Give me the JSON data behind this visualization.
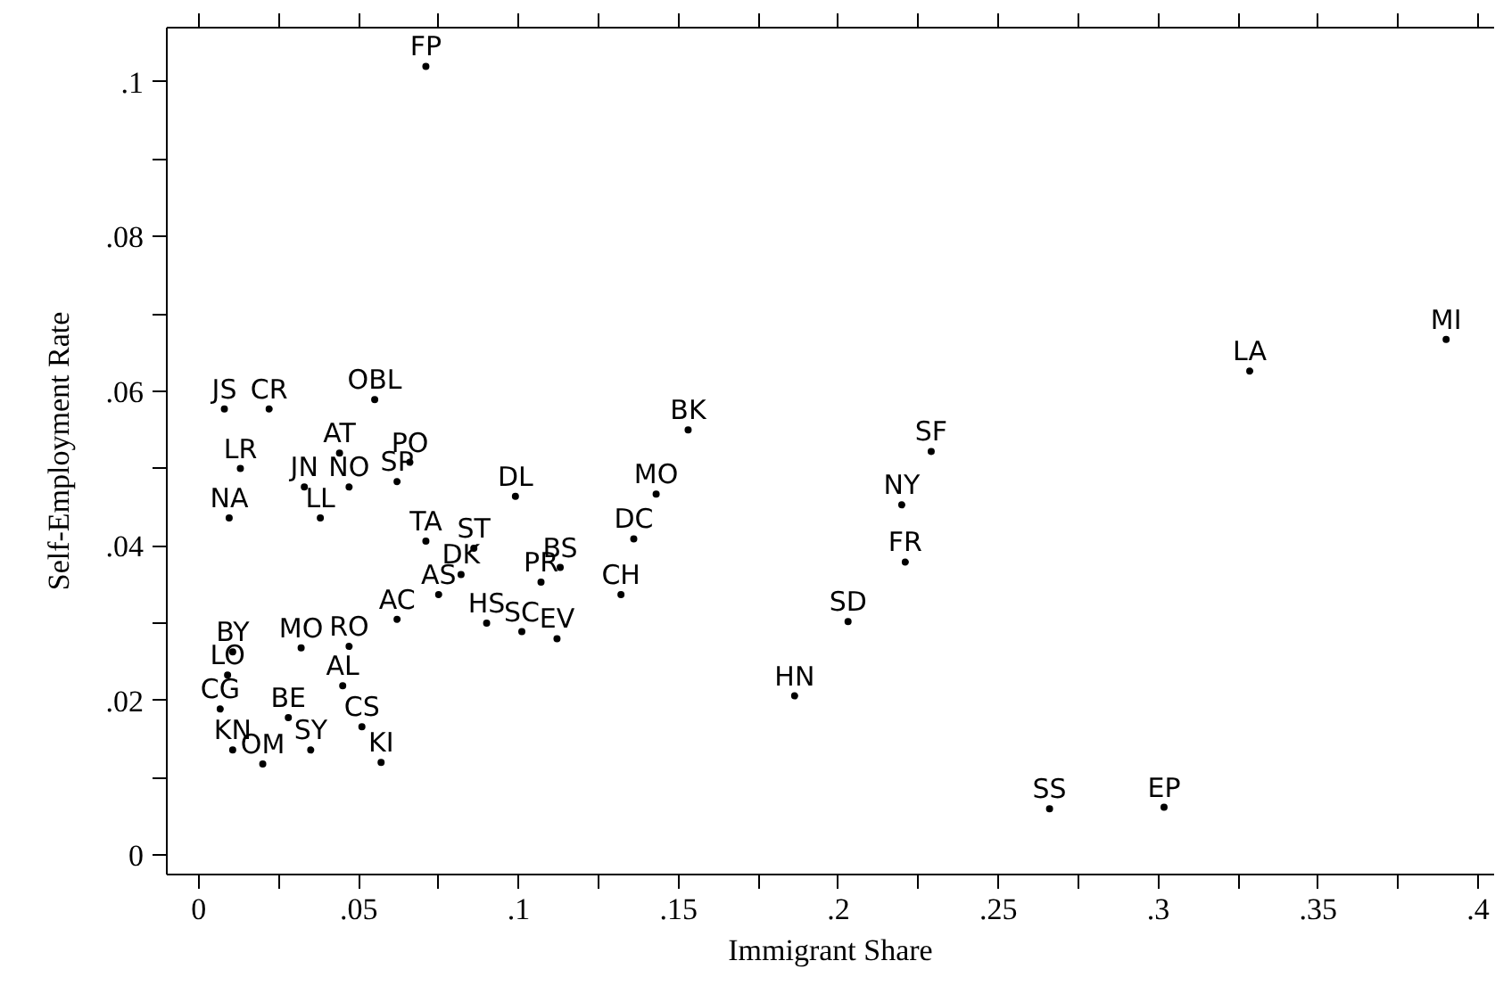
{
  "chart_data": {
    "type": "scatter",
    "xlabel": "Immigrant Share",
    "ylabel": "Self-Employment Rate",
    "marker": "circle",
    "grid": false,
    "xlim": [
      -0.01,
      0.405
    ],
    "ylim": [
      -0.0025,
      0.107
    ],
    "xticks": [
      0,
      {
        "value": 0.025,
        "label": null
      },
      {
        "value": 0.05,
        "label": ".05"
      },
      {
        "value": 0.075,
        "label": null
      },
      {
        "value": 0.1,
        "label": ".1"
      },
      {
        "value": 0.125,
        "label": null
      },
      {
        "value": 0.15,
        "label": ".15"
      },
      {
        "value": 0.175,
        "label": null
      },
      {
        "value": 0.2,
        "label": ".2"
      },
      {
        "value": 0.225,
        "label": null
      },
      {
        "value": 0.25,
        "label": ".25"
      },
      {
        "value": 0.275,
        "label": null
      },
      {
        "value": 0.3,
        "label": ".3"
      },
      {
        "value": 0.325,
        "label": null
      },
      {
        "value": 0.35,
        "label": ".35"
      },
      {
        "value": 0.375,
        "label": null
      },
      {
        "value": 0.4,
        "label": ".4"
      }
    ],
    "yticks": [
      0,
      {
        "value": 0.01,
        "label": null
      },
      {
        "value": 0.02,
        "label": ".02"
      },
      {
        "value": 0.03,
        "label": null
      },
      {
        "value": 0.04,
        "label": ".04"
      },
      {
        "value": 0.05,
        "label": null
      },
      {
        "value": 0.06,
        "label": ".06"
      },
      {
        "value": 0.07,
        "label": null
      },
      {
        "value": 0.08,
        "label": ".08"
      },
      {
        "value": 0.09,
        "label": null
      },
      {
        "value": 0.1,
        "label": ".1"
      }
    ],
    "series": [
      {
        "color": "#000000",
        "x": [
          0.071,
          0.008,
          0.022,
          0.013,
          0.044,
          0.033,
          0.047,
          0.055,
          0.066,
          0.062,
          0.038,
          0.071,
          0.086,
          0.099,
          0.143,
          0.153,
          0.136,
          0.113,
          0.107,
          0.132,
          0.101,
          0.112,
          0.09,
          0.062,
          0.075,
          0.082,
          0.032,
          0.047,
          0.045,
          0.051,
          0.057,
          0.009,
          0.0067,
          0.028,
          0.035,
          0.02,
          0.0106,
          0.0106,
          0.0095,
          0.3286,
          0.39,
          0.229,
          0.2198,
          0.2209,
          0.203,
          0.1863,
          0.266,
          0.3018
        ],
        "values": [
          0.102,
          0.0577,
          0.0577,
          0.05,
          0.052,
          0.0476,
          0.0476,
          0.0589,
          0.0508,
          0.0483,
          0.0436,
          0.0406,
          0.0397,
          0.0464,
          0.0467,
          0.055,
          0.0409,
          0.0372,
          0.0353,
          0.0337,
          0.0289,
          0.028,
          0.03,
          0.0305,
          0.0337,
          0.0363,
          0.0268,
          0.027,
          0.0219,
          0.0166,
          0.012,
          0.0233,
          0.0189,
          0.0178,
          0.0136,
          0.0118,
          0.0136,
          0.0263,
          0.0436,
          0.0626,
          0.0667,
          0.0522,
          0.0453,
          0.0379,
          0.0302,
          0.0206,
          0.006,
          0.0062
        ],
        "value_labels": [
          "FP",
          "JS",
          "CR",
          "LR",
          "AT",
          "JN",
          "NO",
          "OBL",
          "PO",
          "SP",
          "LL",
          "TA",
          "ST",
          "DL",
          "MO",
          "BK",
          "DC",
          "BS",
          "PR",
          "CH",
          "SC",
          "EV",
          "HS",
          "AC",
          "AS",
          "DK",
          "MO",
          "RO",
          "AL",
          "CS",
          "KI",
          "LO",
          "CG",
          "BE",
          "SY",
          "OM",
          "KN",
          "BY",
          "NA",
          "LA",
          "MI",
          "SF",
          "NY",
          "FR",
          "SD",
          "HN",
          "SS",
          "EP"
        ]
      }
    ]
  }
}
